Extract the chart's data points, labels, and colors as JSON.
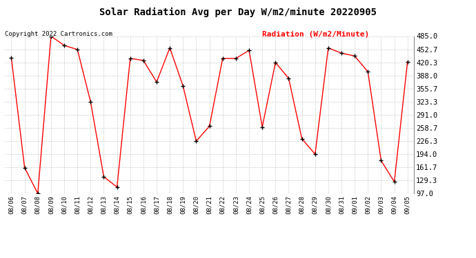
{
  "title": "Solar Radiation Avg per Day W/m2/minute 20220905",
  "copyright": "Copyright 2022 Cartronics.com",
  "legend_label": "Radiation (W/m2/Minute)",
  "dates": [
    "08/06",
    "08/07",
    "08/08",
    "08/09",
    "08/10",
    "08/11",
    "08/12",
    "08/13",
    "08/14",
    "08/15",
    "08/16",
    "08/17",
    "08/18",
    "08/19",
    "08/20",
    "08/21",
    "08/22",
    "08/23",
    "08/24",
    "08/25",
    "08/26",
    "08/27",
    "08/28",
    "08/29",
    "08/30",
    "08/31",
    "09/01",
    "09/02",
    "09/03",
    "09/04",
    "09/05"
  ],
  "values": [
    431,
    161,
    97,
    485,
    462,
    452,
    323,
    138,
    113,
    430,
    425,
    372,
    456,
    362,
    226,
    263,
    430,
    430,
    450,
    261,
    420,
    381,
    232,
    194,
    456,
    443,
    436,
    397,
    178,
    126,
    422
  ],
  "ylim": [
    97.0,
    485.0
  ],
  "yticks": [
    97.0,
    129.3,
    161.7,
    194.0,
    226.3,
    258.7,
    291.0,
    323.3,
    355.7,
    388.0,
    420.3,
    452.7,
    485.0
  ],
  "line_color": "red",
  "marker_color": "black",
  "bg_color": "#ffffff",
  "grid_color": "#cccccc",
  "title_fontsize": 10,
  "copyright_color": "black",
  "legend_color": "red"
}
